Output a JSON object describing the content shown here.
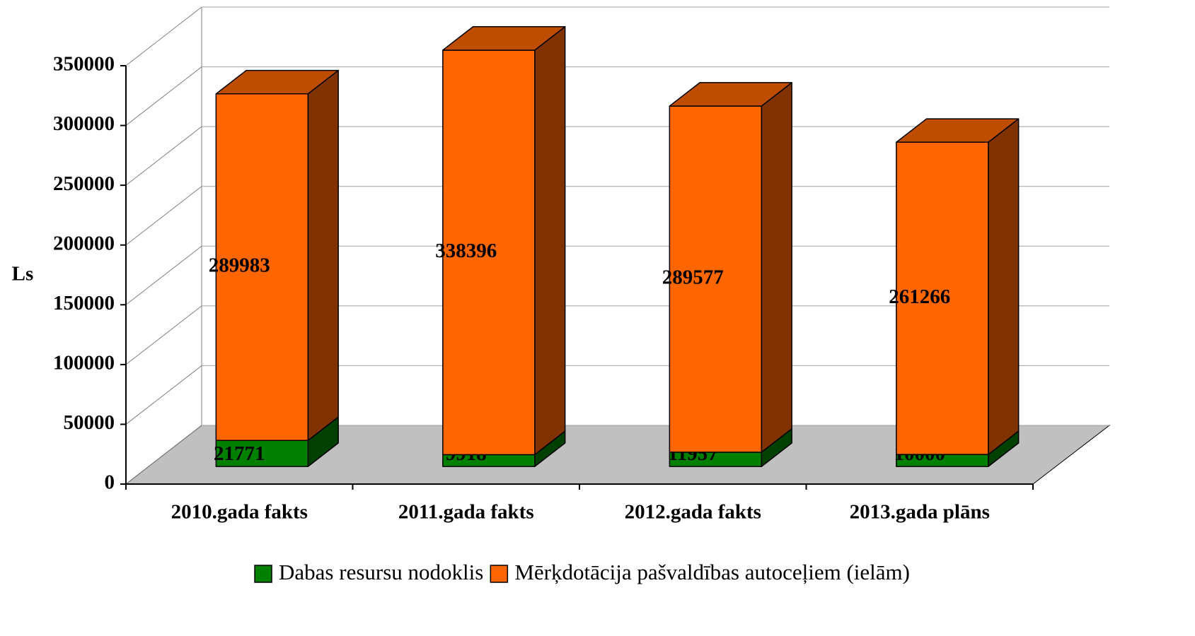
{
  "chart_data": {
    "type": "bar3d_stacked",
    "categories": [
      "2010.gada fakts",
      "2011.gada fakts",
      "2012.gada fakts",
      "2013.gada plāns"
    ],
    "series": [
      {
        "name": "Dabas resursu nodoklis",
        "color": "#008000",
        "values": [
          21771,
          9918,
          11957,
          10000
        ]
      },
      {
        "name": "Mērķdotācija pašvaldības autoceļiem (ielām)",
        "color": "#FF6600",
        "values": [
          289983,
          338396,
          289577,
          261266
        ]
      }
    ],
    "y_label": "Ls",
    "ylim": [
      0,
      350000
    ],
    "yticks": [
      0,
      50000,
      100000,
      150000,
      200000,
      250000,
      300000,
      350000
    ],
    "grid": true,
    "legend": "bottom"
  }
}
